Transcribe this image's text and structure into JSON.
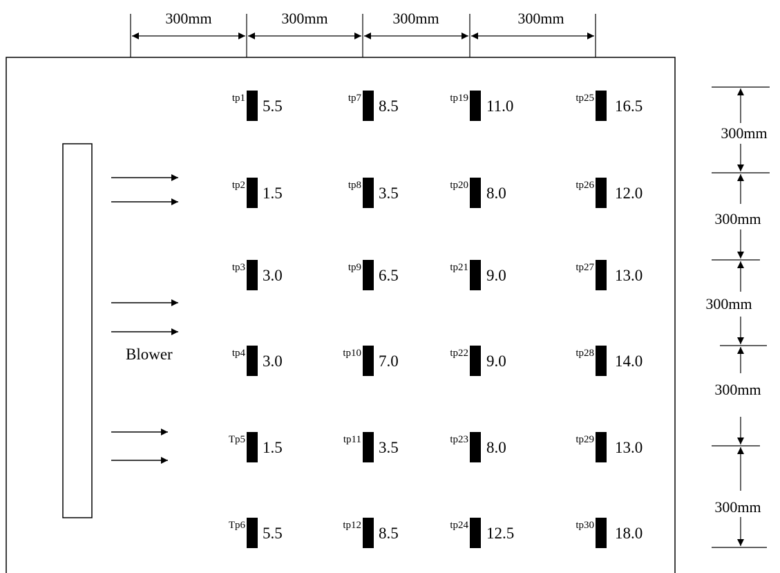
{
  "dimensions": {
    "top": [
      "300mm",
      "300mm",
      "300mm",
      "300mm"
    ],
    "right": [
      "300mm",
      "300mm",
      "300mm",
      "300mm",
      "300mm"
    ]
  },
  "blower": {
    "label": "Blower"
  },
  "points": [
    [
      {
        "tag": "tp1",
        "value": "5.5"
      },
      {
        "tag": "tp2",
        "value": "1.5"
      },
      {
        "tag": "tp3",
        "value": "3.0"
      },
      {
        "tag": "tp4",
        "value": "3.0"
      },
      {
        "tag": "Tp5",
        "value": "1.5"
      },
      {
        "tag": "Tp6",
        "value": "5.5"
      }
    ],
    [
      {
        "tag": "tp7",
        "value": "8.5"
      },
      {
        "tag": "tp8",
        "value": "3.5"
      },
      {
        "tag": "tp9",
        "value": "6.5"
      },
      {
        "tag": "tp10",
        "value": "7.0"
      },
      {
        "tag": "tp11",
        "value": "3.5"
      },
      {
        "tag": "tp12",
        "value": "8.5"
      }
    ],
    [
      {
        "tag": "tp19",
        "value": "11.0"
      },
      {
        "tag": "tp20",
        "value": "8.0"
      },
      {
        "tag": "tp21",
        "value": "9.0"
      },
      {
        "tag": "tp22",
        "value": "9.0"
      },
      {
        "tag": "tp23",
        "value": "8.0"
      },
      {
        "tag": "tp24",
        "value": "12.5"
      }
    ],
    [
      {
        "tag": "tp25",
        "value": "16.5"
      },
      {
        "tag": "tp26",
        "value": "12.0"
      },
      {
        "tag": "tp27",
        "value": "13.0"
      },
      {
        "tag": "tp28",
        "value": "14.0"
      },
      {
        "tag": "tp29",
        "value": "13.0"
      },
      {
        "tag": "tp30",
        "value": "18.0"
      }
    ]
  ]
}
